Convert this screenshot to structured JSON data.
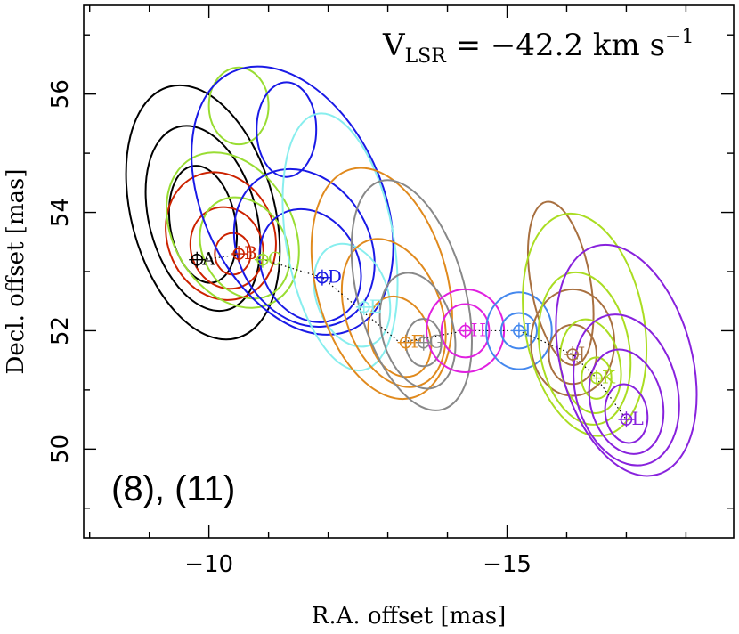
{
  "chart_data": {
    "type": "contour",
    "vlsr_prefix": "V",
    "vlsr_subscript": "LSR",
    "vlsr_value": " = −42.2 km s",
    "vlsr_exponent": "−1",
    "panel_label": "(8), (11)",
    "xlabel": "R.A. offset [mas]",
    "ylabel": "Decl. offset [mas]",
    "xlim": [
      -7.9,
      -18.8
    ],
    "ylim": [
      48.5,
      57.5
    ],
    "x_major_ticks": [
      -10,
      -15
    ],
    "x_tick_labels": [
      "−10",
      "−15"
    ],
    "y_major_ticks": [
      50,
      52,
      54,
      56
    ],
    "y_tick_labels": [
      "50",
      "52",
      "54",
      "56"
    ],
    "x_minor_ticks": [
      -8,
      -9,
      -10,
      -11,
      -12,
      -13,
      -14,
      -15,
      -16,
      -17,
      -18
    ],
    "y_minor_ticks": [
      49,
      50,
      51,
      52,
      53,
      54,
      55,
      56,
      57
    ],
    "track": [
      {
        "x": -9.9,
        "y": 53.2
      },
      {
        "x": -10.6,
        "y": 53.3
      },
      {
        "x": -11.9,
        "y": 52.9
      },
      {
        "x": -13.2,
        "y": 51.8
      },
      {
        "x": -14.3,
        "y": 52.0
      },
      {
        "x": -15.2,
        "y": 52.0
      },
      {
        "x": -16.1,
        "y": 51.6
      },
      {
        "x": -16.5,
        "y": 51.2
      },
      {
        "x": -17.0,
        "y": 50.5
      }
    ],
    "clusters": [
      {
        "label": "A",
        "x": -9.8,
        "y": 53.2,
        "color": "#000000",
        "contours": [
          {
            "cx": -9.9,
            "cy": 54.0,
            "rx": 1.2,
            "ry": 2.2,
            "rot": -15
          },
          {
            "cx": -9.9,
            "cy": 53.9,
            "rx": 0.9,
            "ry": 1.6,
            "rot": -15
          },
          {
            "cx": -9.9,
            "cy": 53.8,
            "rx": 0.55,
            "ry": 1.0,
            "rot": -10
          }
        ]
      },
      {
        "label": "B",
        "x": -10.5,
        "y": 53.3,
        "color": "#cc2200",
        "contours": [
          {
            "cx": -10.2,
            "cy": 53.6,
            "rx": 0.9,
            "ry": 1.1,
            "rot": -20
          },
          {
            "cx": -10.3,
            "cy": 53.4,
            "rx": 0.6,
            "ry": 0.7,
            "rot": -20
          },
          {
            "cx": -10.4,
            "cy": 53.3,
            "rx": 0.3,
            "ry": 0.35,
            "rot": 0
          }
        ]
      },
      {
        "label": "C",
        "x": -10.9,
        "y": 53.2,
        "color": "#99dd33",
        "contours": [
          {
            "cx": -10.5,
            "cy": 55.8,
            "rx": 0.5,
            "ry": 0.65,
            "rot": 0
          },
          {
            "cx": -10.4,
            "cy": 53.7,
            "rx": 1.0,
            "ry": 1.4,
            "rot": -30
          },
          {
            "cx": -10.6,
            "cy": 53.4,
            "rx": 0.7,
            "ry": 0.9,
            "rot": -30
          }
        ]
      },
      {
        "label": "D",
        "x": -11.9,
        "y": 52.9,
        "color": "#1a1ae6",
        "contours": [
          {
            "cx": -11.4,
            "cy": 54.2,
            "rx": 1.5,
            "ry": 2.4,
            "rot": -25
          },
          {
            "cx": -11.6,
            "cy": 53.4,
            "rx": 1.1,
            "ry": 1.4,
            "rot": -30
          },
          {
            "cx": -11.7,
            "cy": 53.1,
            "rx": 0.8,
            "ry": 1.0,
            "rot": -30
          },
          {
            "cx": -11.3,
            "cy": 55.4,
            "rx": 0.5,
            "ry": 0.8,
            "rot": 0
          }
        ]
      },
      {
        "label": "E",
        "x": -12.6,
        "y": 52.4,
        "color": "#88eeee",
        "contours": [
          {
            "cx": -12.2,
            "cy": 53.5,
            "rx": 0.9,
            "ry": 2.2,
            "rot": -10
          },
          {
            "cx": -12.4,
            "cy": 52.6,
            "rx": 0.6,
            "ry": 0.9,
            "rot": -20
          }
        ]
      },
      {
        "label": "F",
        "x": -13.3,
        "y": 51.8,
        "color": "#e08a1e",
        "contours": [
          {
            "cx": -12.9,
            "cy": 52.8,
            "rx": 1.1,
            "ry": 2.0,
            "rot": -15
          },
          {
            "cx": -13.1,
            "cy": 52.3,
            "rx": 0.8,
            "ry": 1.3,
            "rot": -20
          },
          {
            "cx": -13.2,
            "cy": 51.9,
            "rx": 0.5,
            "ry": 0.7,
            "rot": -20
          }
        ]
      },
      {
        "label": "G",
        "x": -13.6,
        "y": 51.8,
        "color": "#888888",
        "contours": [
          {
            "cx": -13.4,
            "cy": 52.6,
            "rx": 0.9,
            "ry": 2.0,
            "rot": -15
          },
          {
            "cx": -13.5,
            "cy": 52.0,
            "rx": 0.6,
            "ry": 1.0,
            "rot": -15
          },
          {
            "cx": -13.6,
            "cy": 51.8,
            "rx": 0.3,
            "ry": 0.4,
            "rot": 0
          }
        ]
      },
      {
        "label": "H",
        "x": -14.3,
        "y": 52.0,
        "color": "#e020e0",
        "contours": [
          {
            "cx": -14.3,
            "cy": 52.0,
            "rx": 0.65,
            "ry": 0.7,
            "rot": 0
          },
          {
            "cx": -14.3,
            "cy": 52.0,
            "rx": 0.4,
            "ry": 0.45,
            "rot": 0
          }
        ]
      },
      {
        "label": "I",
        "x": -15.2,
        "y": 52.0,
        "color": "#4488ee",
        "contours": [
          {
            "cx": -15.2,
            "cy": 52.0,
            "rx": 0.55,
            "ry": 0.65,
            "rot": 0
          },
          {
            "cx": -15.2,
            "cy": 52.0,
            "rx": 0.3,
            "ry": 0.3,
            "rot": 0
          }
        ]
      },
      {
        "label": "J",
        "x": -16.1,
        "y": 51.6,
        "color": "#a87040",
        "contours": [
          {
            "cx": -15.9,
            "cy": 52.8,
            "rx": 0.5,
            "ry": 1.4,
            "rot": -10
          },
          {
            "cx": -16.1,
            "cy": 51.8,
            "rx": 0.7,
            "ry": 0.9,
            "rot": 0
          },
          {
            "cx": -16.1,
            "cy": 51.6,
            "rx": 0.4,
            "ry": 0.5,
            "rot": 0
          }
        ]
      },
      {
        "label": "K",
        "x": -16.5,
        "y": 51.2,
        "color": "#aadd22",
        "contours": [
          {
            "cx": -16.3,
            "cy": 52.1,
            "rx": 1.0,
            "ry": 1.9,
            "rot": -10
          },
          {
            "cx": -16.3,
            "cy": 51.7,
            "rx": 0.75,
            "ry": 1.3,
            "rot": -10
          },
          {
            "cx": -16.4,
            "cy": 51.4,
            "rx": 0.5,
            "ry": 0.8,
            "rot": -10
          },
          {
            "cx": -16.5,
            "cy": 51.2,
            "rx": 0.25,
            "ry": 0.35,
            "rot": 0
          }
        ]
      },
      {
        "label": "L",
        "x": -17.0,
        "y": 50.5,
        "color": "#8822dd",
        "contours": [
          {
            "cx": -17.0,
            "cy": 51.5,
            "rx": 1.1,
            "ry": 2.0,
            "rot": -15
          },
          {
            "cx": -17.0,
            "cy": 51.0,
            "rx": 0.85,
            "ry": 1.3,
            "rot": -15
          },
          {
            "cx": -17.0,
            "cy": 50.8,
            "rx": 0.6,
            "ry": 0.9,
            "rot": -15
          },
          {
            "cx": -17.0,
            "cy": 50.6,
            "rx": 0.35,
            "ry": 0.5,
            "rot": -10
          }
        ]
      }
    ]
  }
}
